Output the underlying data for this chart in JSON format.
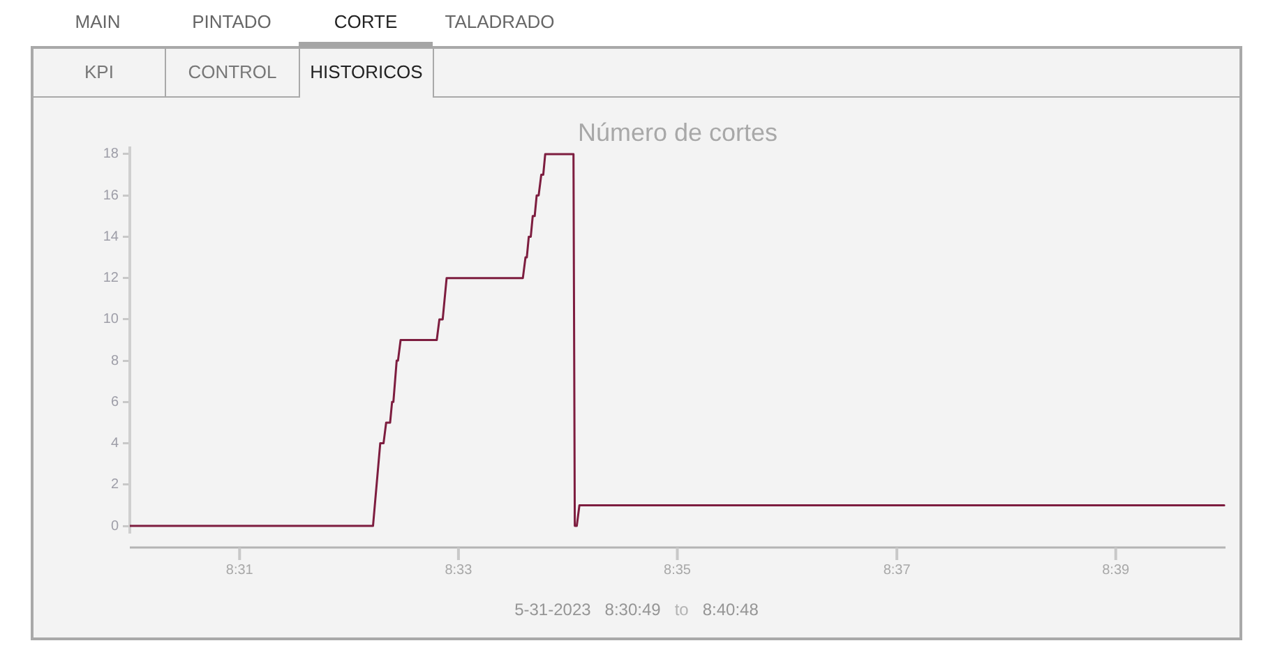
{
  "chart_data": {
    "type": "line",
    "title": "Número de cortes",
    "annotations": [
      "MAIN",
      "PINTADO",
      "CORTE",
      "TALADRADO",
      "KPI",
      "CONTROL",
      "HISTORICOS",
      "5-31-2023",
      "8:30:49",
      "to",
      "8:40:48"
    ],
    "x": [
      8.5,
      8.537,
      8.5381,
      8.5386,
      8.539,
      8.5396,
      8.5399,
      8.5401,
      8.5406,
      8.5408,
      8.5412,
      8.5467,
      8.5471,
      8.5476,
      8.5482,
      8.5598,
      8.5602,
      8.5604,
      8.5607,
      8.561,
      8.5613,
      8.5616,
      8.5619,
      8.5622,
      8.5626,
      8.5629,
      8.5632,
      8.5675,
      8.5677,
      8.568,
      8.5684,
      8.6665
    ],
    "values": [
      0,
      0,
      4,
      4,
      5,
      5,
      6,
      6,
      8,
      8,
      9,
      9,
      10,
      10,
      12,
      12,
      13,
      13,
      14,
      14,
      15,
      15,
      16,
      16,
      17,
      17,
      18,
      18,
      0,
      0,
      1,
      1
    ],
    "color": "#7d1d3f",
    "xlim": [
      8.5,
      8.6667
    ],
    "ylim": [
      -0.3,
      18.3
    ],
    "xticks": [
      {
        "value": 8.5167,
        "label": "8:31"
      },
      {
        "value": 8.55,
        "label": "8:33"
      },
      {
        "value": 8.5833,
        "label": "8:35"
      },
      {
        "value": 8.6167,
        "label": "8:37"
      },
      {
        "value": 8.65,
        "label": "8:39"
      }
    ],
    "yticks": [
      0,
      2,
      4,
      6,
      8,
      10,
      12,
      14,
      16,
      18
    ]
  }
}
